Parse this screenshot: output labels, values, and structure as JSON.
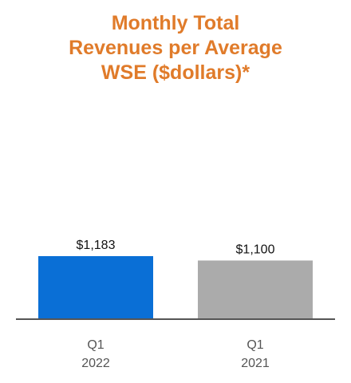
{
  "chart_data": {
    "type": "bar",
    "title_lines": [
      "Monthly Total",
      "Revenues per Average",
      "WSE ($dollars)*"
    ],
    "categories": [
      {
        "line1": "Q1",
        "line2": "2022"
      },
      {
        "line1": "Q1",
        "line2": "2021"
      }
    ],
    "values": [
      1183,
      1100
    ],
    "data_labels": [
      "$1,183",
      "$1,100"
    ],
    "bar_colors": [
      "#0a6fd6",
      "#ababab"
    ],
    "title_color": "#e07b2a",
    "axis_color": "#555555",
    "ylim": [
      0,
      1183
    ],
    "xlabel": "",
    "ylabel": "",
    "grid": false,
    "legend": "none"
  }
}
